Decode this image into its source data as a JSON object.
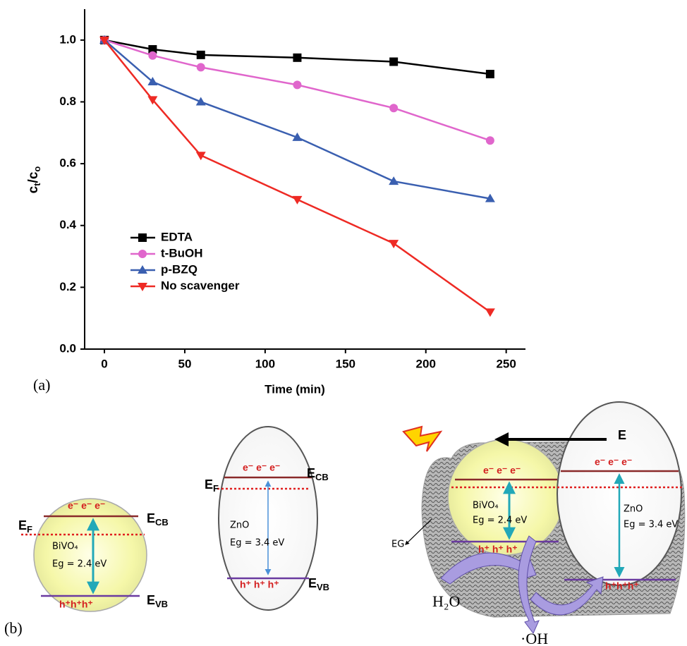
{
  "chart_data": {
    "type": "line",
    "xlabel": "Time (min)",
    "ylabel": [
      "c",
      "t",
      "/c",
      "o"
    ],
    "x": [
      0,
      30,
      60,
      120,
      180,
      240
    ],
    "series": [
      {
        "name": "EDTA",
        "color": "#000000",
        "marker": "square",
        "values": [
          1.0,
          0.97,
          0.952,
          0.943,
          0.93,
          0.89
        ]
      },
      {
        "name": "t-BuOH",
        "color": "#e066cc",
        "marker": "circle",
        "values": [
          1.0,
          0.95,
          0.912,
          0.855,
          0.78,
          0.675
        ]
      },
      {
        "name": "p-BZQ",
        "color": "#3a5fb0",
        "marker": "triangle-up",
        "values": [
          1.0,
          0.865,
          0.8,
          0.685,
          0.543,
          0.487
        ]
      },
      {
        "name": "No scavenger",
        "color": "#ee2a24",
        "marker": "triangle-down",
        "values": [
          1.0,
          0.807,
          0.627,
          0.484,
          0.342,
          0.12
        ]
      }
    ],
    "xlim": [
      -12.3,
      262
    ],
    "ylim": [
      0,
      1.1
    ],
    "xticks": [
      0,
      50,
      100,
      150,
      200,
      250
    ],
    "yticks": [
      {
        "value": 0,
        "label": "0.0"
      },
      0.2,
      0.4,
      0.6,
      0.8,
      {
        "value": 1,
        "label": "1.0"
      }
    ]
  },
  "diagram": {
    "panel_labels": [
      "(a)",
      "(b)"
    ],
    "left": {
      "ef": {
        "main": "E",
        "sub": "F"
      },
      "ecb": {
        "main": "E",
        "sub": "CB"
      },
      "evb": {
        "main": "E",
        "sub": "VB"
      },
      "name": "BiVO₄",
      "eg": "Eg = 2.4 eV",
      "electrons": "e⁻ e⁻ e⁻",
      "holes": "h⁺h⁺h⁺"
    },
    "middle": {
      "ef": {
        "main": "E",
        "sub": "F"
      },
      "ecb": {
        "main": "E",
        "sub": "CB"
      },
      "evb": {
        "main": "E",
        "sub": "VB"
      },
      "name": "ZnO",
      "eg": "Eg = 3.4 eV",
      "electrons": "e⁻ e⁻ e⁻",
      "holes": "h⁺ h⁺ h⁺"
    },
    "right": {
      "field": "E",
      "layer": "EG",
      "water": "H₂O",
      "radical": "·OH",
      "bivo4": {
        "name": "BiVO₄",
        "eg": "Eg = 2.4 eV",
        "electrons": "e⁻ e⁻ e⁻",
        "holes": "h⁺ h⁺ h⁺"
      },
      "zno": {
        "name": "ZnO",
        "eg": "Eg = 3.4 eV",
        "electrons": "e⁻ e⁻ e⁻",
        "holes": "h⁺h⁺h⁺"
      }
    }
  }
}
